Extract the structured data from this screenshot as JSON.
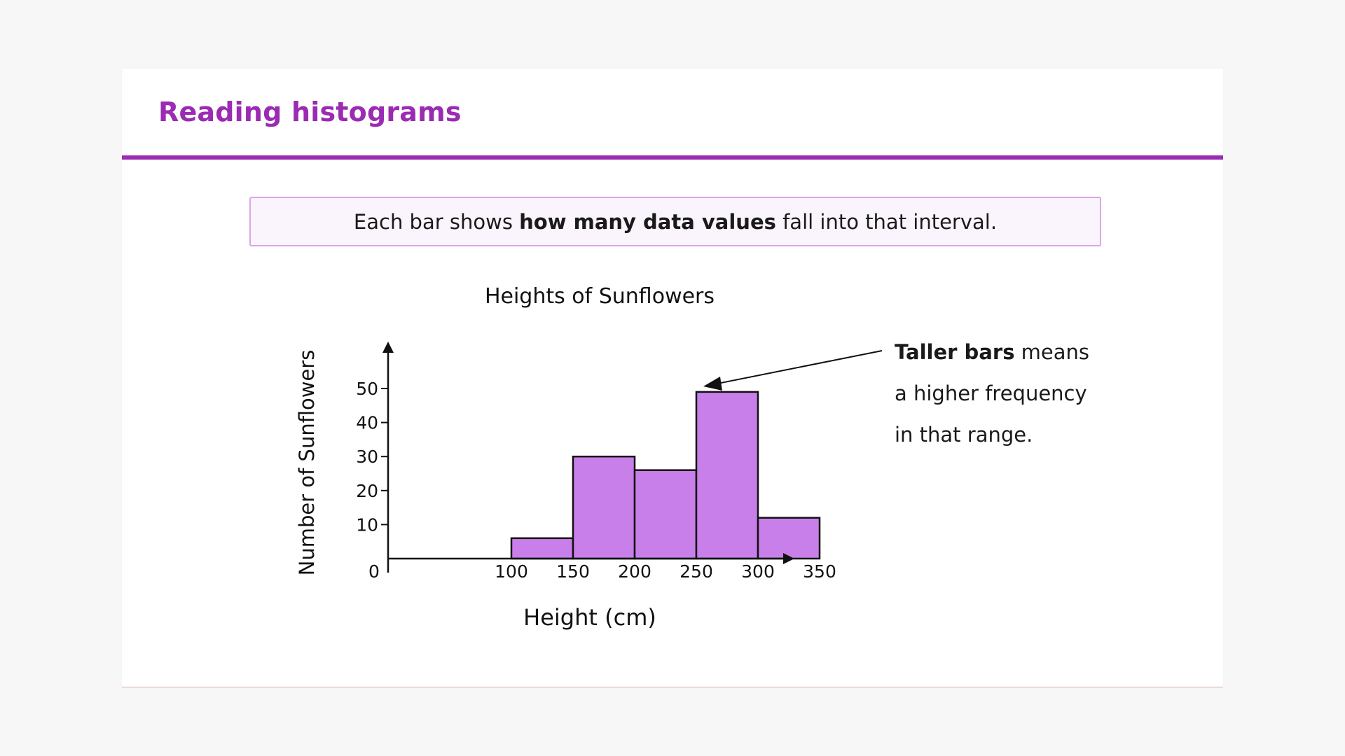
{
  "slide": {
    "title": "Reading histograms"
  },
  "callout": {
    "text_before": "Each bar shows ",
    "text_bold": "how many data values",
    "text_after": " fall into that interval."
  },
  "annotation": {
    "bold": "Taller bars",
    "line1_rest": " means",
    "line2": "a higher frequency",
    "line3": "in that range."
  },
  "colors": {
    "accent": "#9b2bb3",
    "bar_fill": "#c97fea",
    "callout_border": "#dba6e6",
    "callout_bg": "#faf4fc"
  },
  "chart_data": {
    "type": "bar",
    "title": "Heights of Sunflowers",
    "xlabel": "Height (cm)",
    "ylabel": "Number of Sunflowers",
    "bins": [
      {
        "from": 100,
        "to": 150,
        "value": 6
      },
      {
        "from": 150,
        "to": 200,
        "value": 30
      },
      {
        "from": 200,
        "to": 250,
        "value": 26
      },
      {
        "from": 250,
        "to": 300,
        "value": 49
      },
      {
        "from": 300,
        "to": 350,
        "value": 12
      }
    ],
    "x_ticks": [
      "0",
      "100",
      "150",
      "200",
      "250",
      "300",
      "350"
    ],
    "y_ticks": [
      "10",
      "20",
      "30",
      "40",
      "50"
    ],
    "xlim": [
      0,
      350
    ],
    "ylim": [
      0,
      50
    ],
    "grid": false,
    "legend": "none"
  }
}
